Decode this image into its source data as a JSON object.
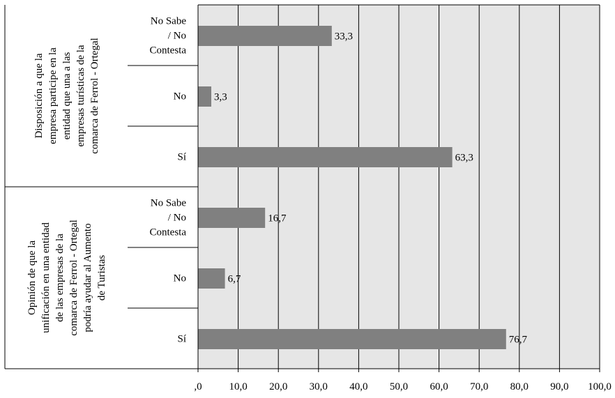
{
  "chart_data": {
    "type": "bar",
    "orientation": "horizontal",
    "xlim": [
      0,
      100
    ],
    "x_ticks": [
      ",0",
      "10,0",
      "20,0",
      "30,0",
      "40,0",
      "50,0",
      "60,0",
      "70,0",
      "80,0",
      "90,0",
      "100,0"
    ],
    "grid": true,
    "groups": [
      {
        "label": "Disposición a que la empresa participe en la entidad que una a las empresas turísticas de la comarca de Ferrol - Ortegal",
        "label_lines": [
          "Disposición a que la",
          "empresa participe en la",
          "entidad que una a las",
          "empresas turísticas de la",
          "comarca de Ferrol - Ortegal"
        ],
        "categories": [
          {
            "label": "No Sabe / No Contesta",
            "label_lines": [
              "No Sabe",
              "/ No",
              "Contesta"
            ],
            "value": 33.3,
            "value_label": "33,3"
          },
          {
            "label": "No",
            "label_lines": [
              "No"
            ],
            "value": 3.3,
            "value_label": "3,3"
          },
          {
            "label": "Sí",
            "label_lines": [
              "Sí"
            ],
            "value": 63.3,
            "value_label": "63,3"
          }
        ]
      },
      {
        "label": "Opinión de que la unificación en una entidad de las empresas de la comarca de Ferrol - Ortegal podría ayudar al Aumento de Turistas",
        "label_lines": [
          "Opinión de que la",
          "unificación en una entidad",
          "de las empresas de la",
          "comarca de Ferrol - Ortegal",
          "podría ayudar al Aumento",
          "de Turistas"
        ],
        "categories": [
          {
            "label": "No Sabe / No Contesta",
            "label_lines": [
              "No Sabe",
              "/ No",
              "Contesta"
            ],
            "value": 16.7,
            "value_label": "16,7"
          },
          {
            "label": "No",
            "label_lines": [
              "No"
            ],
            "value": 6.7,
            "value_label": "6,7"
          },
          {
            "label": "Sí",
            "label_lines": [
              "Sí"
            ],
            "value": 76.7,
            "value_label": "76,7"
          }
        ]
      }
    ],
    "colors": {
      "bar": "#808080",
      "plot_background": "#e6e6e6",
      "grid": "#000000"
    }
  }
}
